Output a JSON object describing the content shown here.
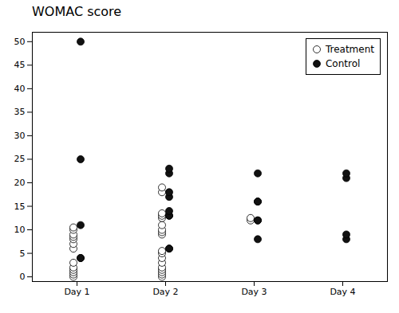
{
  "chart_data": {
    "type": "scatter",
    "title": "WOMAC score",
    "categories": [
      "Day 1",
      "Day 2",
      "Day 3",
      "Day 4"
    ],
    "series": [
      {
        "name": "Treatment",
        "color": "#ffffff",
        "marker": "circle",
        "values": [
          [
            0,
            0.5,
            1,
            1.5,
            2,
            3,
            6,
            7,
            8,
            8.5,
            9,
            10,
            10.5
          ],
          [
            0,
            0.5,
            1,
            1.5,
            2,
            3,
            4,
            5,
            5.5,
            9,
            9.5,
            10,
            11,
            12.5,
            13,
            13.5,
            18,
            19
          ],
          [
            12,
            12.5
          ],
          []
        ]
      },
      {
        "name": "Control",
        "color": "#111111",
        "marker": "circle",
        "values": [
          [
            4,
            4,
            11,
            25,
            50
          ],
          [
            6,
            6,
            13,
            13,
            14,
            17,
            18,
            22,
            23
          ],
          [
            8,
            12,
            12,
            16,
            16,
            22
          ],
          [
            8,
            9,
            21,
            22
          ]
        ]
      }
    ],
    "ylim": [
      -1,
      52
    ],
    "yticks": [
      0,
      5,
      10,
      15,
      20,
      25,
      30,
      35,
      40,
      45,
      50
    ],
    "grid": false,
    "legend": "upper right"
  }
}
